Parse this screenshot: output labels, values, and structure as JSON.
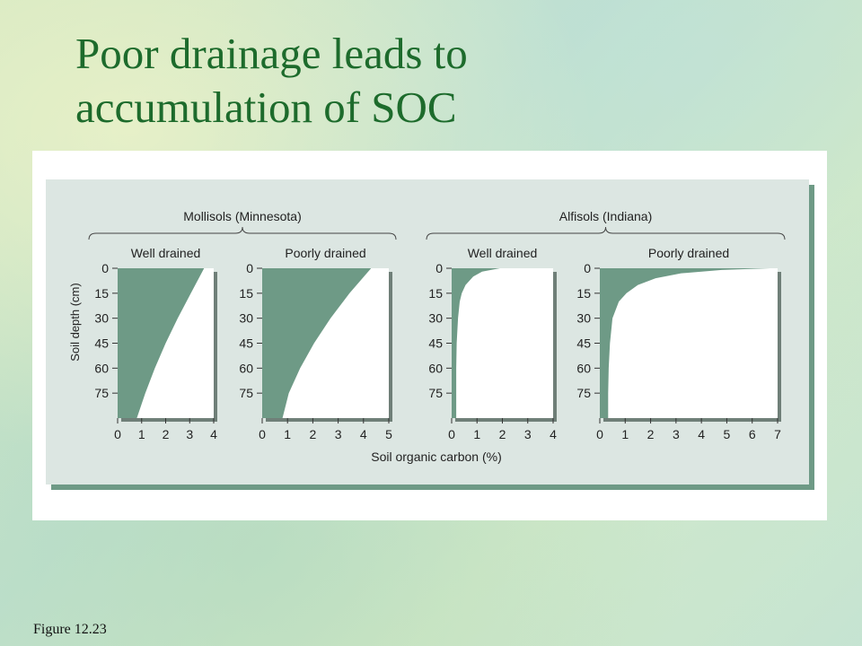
{
  "slide": {
    "title_line1": "Poor drainage leads to",
    "title_line2": "accumulation of SOC",
    "caption": "Figure 12.23"
  },
  "colors": {
    "title": "#1d6b2c",
    "figure_background": "#dce6e2",
    "soc_fill": "#6e9a86",
    "shadow": "#6e9a86"
  },
  "chart_data": {
    "type": "area",
    "ylabel": "Soil depth (cm)",
    "xlabel": "Soil organic carbon (%)",
    "y_ticks": [
      "0",
      "15",
      "30",
      "45",
      "60",
      "75"
    ],
    "ylim": [
      0,
      90
    ],
    "y_inverted": true,
    "groups": [
      {
        "name": "Mollisols (Minnesota)"
      },
      {
        "name": "Alfisols (Indiana)"
      }
    ],
    "panels": [
      {
        "name": "Well drained",
        "xlim": [
          0,
          4
        ],
        "x_ticks": [
          "0",
          "1",
          "2",
          "3",
          "4"
        ],
        "depth": [
          0,
          15,
          30,
          45,
          60,
          75,
          90
        ],
        "soc": [
          3.6,
          3.05,
          2.5,
          2.0,
          1.55,
          1.15,
          0.8
        ]
      },
      {
        "name": "Poorly drained",
        "xlim": [
          0,
          5
        ],
        "x_ticks": [
          "0",
          "1",
          "2",
          "3",
          "4",
          "5"
        ],
        "depth": [
          0,
          15,
          30,
          45,
          60,
          75,
          90
        ],
        "soc": [
          4.3,
          3.45,
          2.7,
          2.05,
          1.5,
          1.05,
          0.8
        ]
      },
      {
        "name": "Well drained",
        "xlim": [
          0,
          4
        ],
        "x_ticks": [
          "0",
          "1",
          "2",
          "3",
          "4"
        ],
        "depth": [
          0,
          2,
          5,
          10,
          15,
          20,
          30,
          45,
          60,
          75,
          90
        ],
        "soc": [
          1.9,
          1.2,
          0.85,
          0.55,
          0.4,
          0.32,
          0.25,
          0.2,
          0.18,
          0.18,
          0.18
        ]
      },
      {
        "name": "Poorly drained",
        "xlim": [
          0,
          7
        ],
        "x_ticks": [
          "0",
          "1",
          "2",
          "3",
          "4",
          "5",
          "6",
          "7"
        ],
        "depth": [
          0,
          1,
          3,
          6,
          10,
          15,
          20,
          30,
          45,
          60,
          75,
          90
        ],
        "soc": [
          6.7,
          4.8,
          3.2,
          2.2,
          1.5,
          1.05,
          0.75,
          0.5,
          0.4,
          0.35,
          0.33,
          0.33
        ]
      }
    ]
  }
}
